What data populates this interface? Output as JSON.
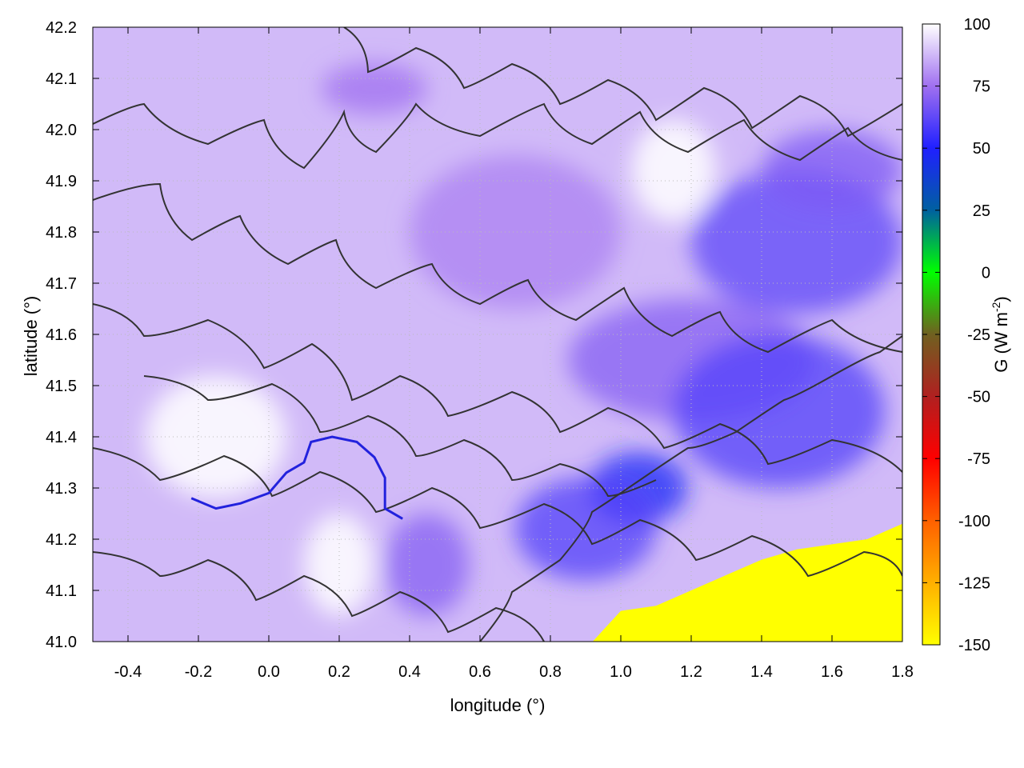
{
  "chart_data": {
    "type": "heatmap",
    "title": "",
    "xlabel": "longitude (°)",
    "ylabel": "latitude (°)",
    "xlim": [
      -0.5,
      1.8
    ],
    "ylim": [
      41.0,
      42.2
    ],
    "xticks": [
      -0.4,
      -0.2,
      0.0,
      0.2,
      0.4,
      0.6,
      0.8,
      1.0,
      1.2,
      1.4,
      1.6,
      1.8
    ],
    "xtick_labels": [
      "-0.4",
      "-0.2",
      "0.0",
      "0.2",
      "0.4",
      "0.6",
      "0.8",
      "1.0",
      "1.2",
      "1.4",
      "1.6",
      "1.8"
    ],
    "yticks": [
      41.0,
      41.1,
      41.2,
      41.3,
      41.4,
      41.5,
      41.6,
      41.7,
      41.8,
      41.9,
      42.0,
      42.1,
      42.2
    ],
    "ytick_labels": [
      "41.0",
      "41.1",
      "41.2",
      "41.3",
      "41.4",
      "41.5",
      "41.6",
      "41.7",
      "41.8",
      "41.9",
      "42.0",
      "42.1",
      "42.2"
    ],
    "grid": true,
    "colorbar": {
      "label": "G (W m",
      "label_exponent": "-2",
      "label_close": ")",
      "range": [
        -150,
        100
      ],
      "ticks": [
        100,
        75,
        50,
        25,
        0,
        -25,
        -50,
        -75,
        -100,
        -125,
        -150
      ],
      "tick_labels": [
        "100",
        "75",
        "50",
        "25",
        "0",
        "-25",
        "-50",
        "-75",
        "-100",
        "-125",
        "-150"
      ],
      "colormap": [
        [
          100,
          "#ffffff"
        ],
        [
          75,
          "#a070f0"
        ],
        [
          50,
          "#2020ff"
        ],
        [
          25,
          "#0060a0"
        ],
        [
          0,
          "#00ff00"
        ],
        [
          -25,
          "#706020"
        ],
        [
          -50,
          "#b02020"
        ],
        [
          -75,
          "#ff0000"
        ],
        [
          -100,
          "#ff6000"
        ],
        [
          -125,
          "#ffb000"
        ],
        [
          -150,
          "#ffff00"
        ]
      ]
    },
    "field": {
      "background_value": 88,
      "regions": [
        {
          "lon": 1.5,
          "lat": 41.78,
          "rx": 0.3,
          "ry": 0.14,
          "value": 62
        },
        {
          "lon": 1.05,
          "lat": 41.3,
          "rx": 0.14,
          "ry": 0.07,
          "value": 48
        },
        {
          "lon": 1.2,
          "lat": 41.55,
          "rx": 0.35,
          "ry": 0.12,
          "value": 70
        },
        {
          "lon": 1.45,
          "lat": 41.45,
          "rx": 0.3,
          "ry": 0.15,
          "value": 60
        },
        {
          "lon": 0.9,
          "lat": 41.22,
          "rx": 0.2,
          "ry": 0.1,
          "value": 60
        },
        {
          "lon": 0.45,
          "lat": 41.15,
          "rx": 0.12,
          "ry": 0.1,
          "value": 70
        },
        {
          "lon": 0.7,
          "lat": 41.8,
          "rx": 0.3,
          "ry": 0.15,
          "value": 78
        },
        {
          "lon": 0.3,
          "lat": 42.08,
          "rx": 0.15,
          "ry": 0.05,
          "value": 75
        },
        {
          "lon": 1.6,
          "lat": 41.92,
          "rx": 0.2,
          "ry": 0.08,
          "value": 68
        }
      ],
      "white_regions": [
        {
          "lon": -0.15,
          "lat": 41.4,
          "rx": 0.2,
          "ry": 0.12
        },
        {
          "lon": 1.15,
          "lat": 41.92,
          "rx": 0.12,
          "ry": 0.1
        },
        {
          "lon": 0.2,
          "lat": 41.15,
          "rx": 0.1,
          "ry": 0.1
        }
      ],
      "sea_boundary": [
        [
          0.92,
          41.0
        ],
        [
          1.0,
          41.06
        ],
        [
          1.1,
          41.07
        ],
        [
          1.2,
          41.1
        ],
        [
          1.3,
          41.13
        ],
        [
          1.4,
          41.16
        ],
        [
          1.5,
          41.18
        ],
        [
          1.6,
          41.19
        ],
        [
          1.7,
          41.2
        ],
        [
          1.8,
          41.23
        ]
      ],
      "sea_value": -150
    },
    "river_path": [
      [
        -0.22,
        41.28
      ],
      [
        -0.15,
        41.26
      ],
      [
        -0.08,
        41.27
      ],
      [
        0.0,
        41.29
      ],
      [
        0.05,
        41.33
      ],
      [
        0.1,
        41.35
      ],
      [
        0.12,
        41.39
      ],
      [
        0.18,
        41.4
      ],
      [
        0.25,
        41.39
      ],
      [
        0.3,
        41.36
      ],
      [
        0.33,
        41.32
      ],
      [
        0.33,
        41.26
      ],
      [
        0.38,
        41.24
      ]
    ]
  }
}
